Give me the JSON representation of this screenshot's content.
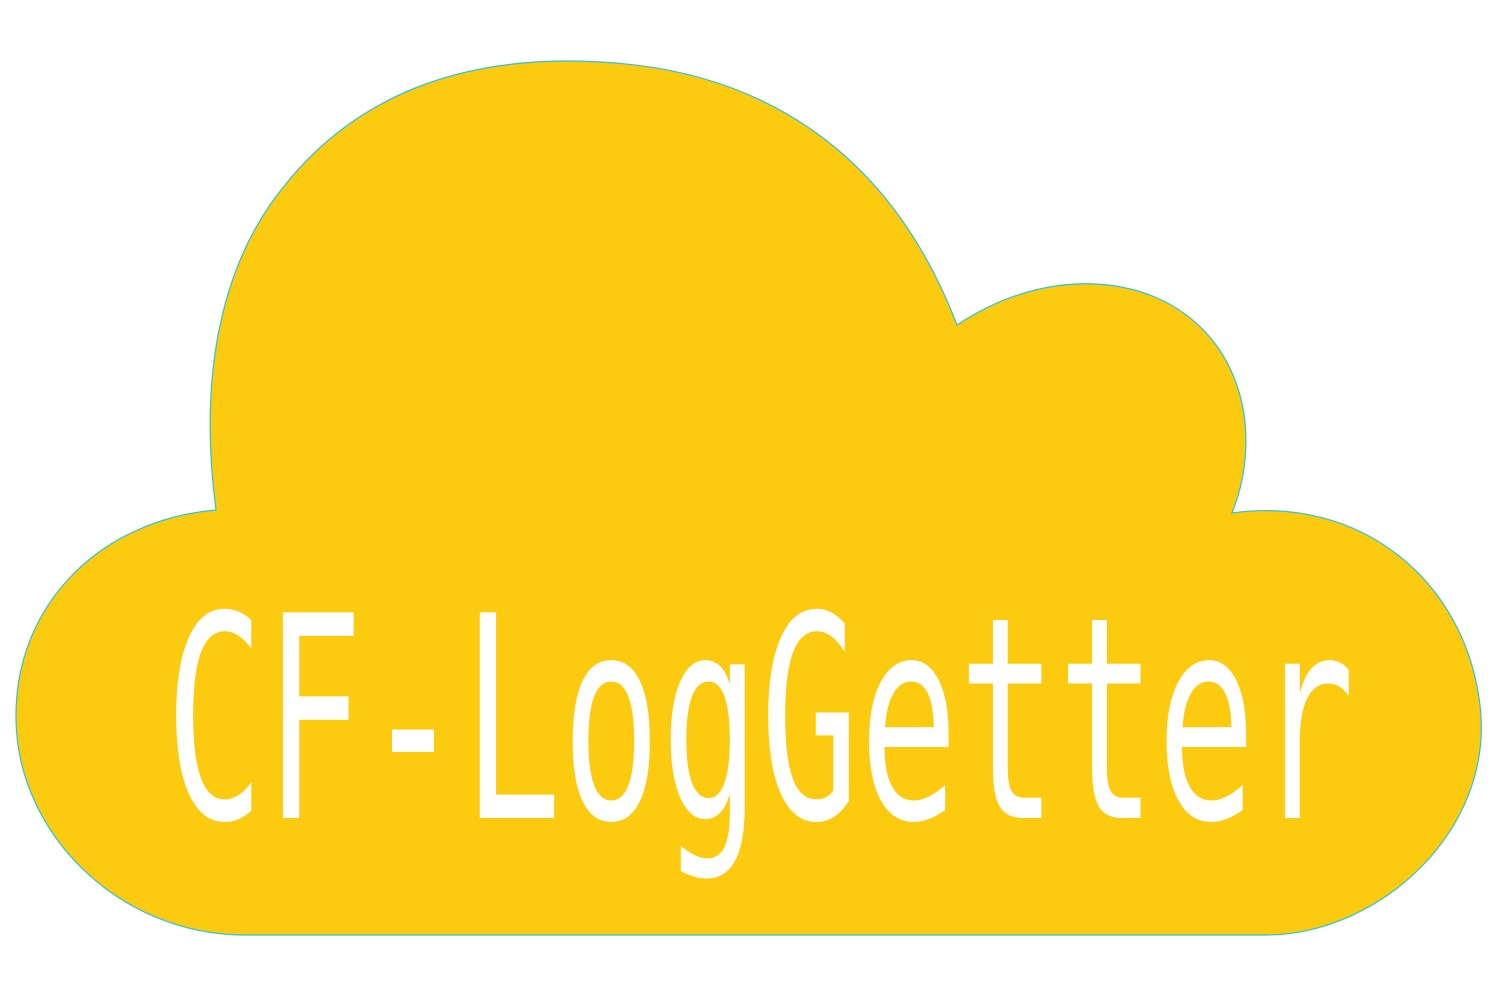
{
  "logo": {
    "text": "CF-LogGetter",
    "cloud_color": "#fcca0f",
    "outline_color": "#2ec4d6",
    "text_color": "#ffffff",
    "background_color": "#ffffff",
    "icon": "cloud-icon"
  }
}
